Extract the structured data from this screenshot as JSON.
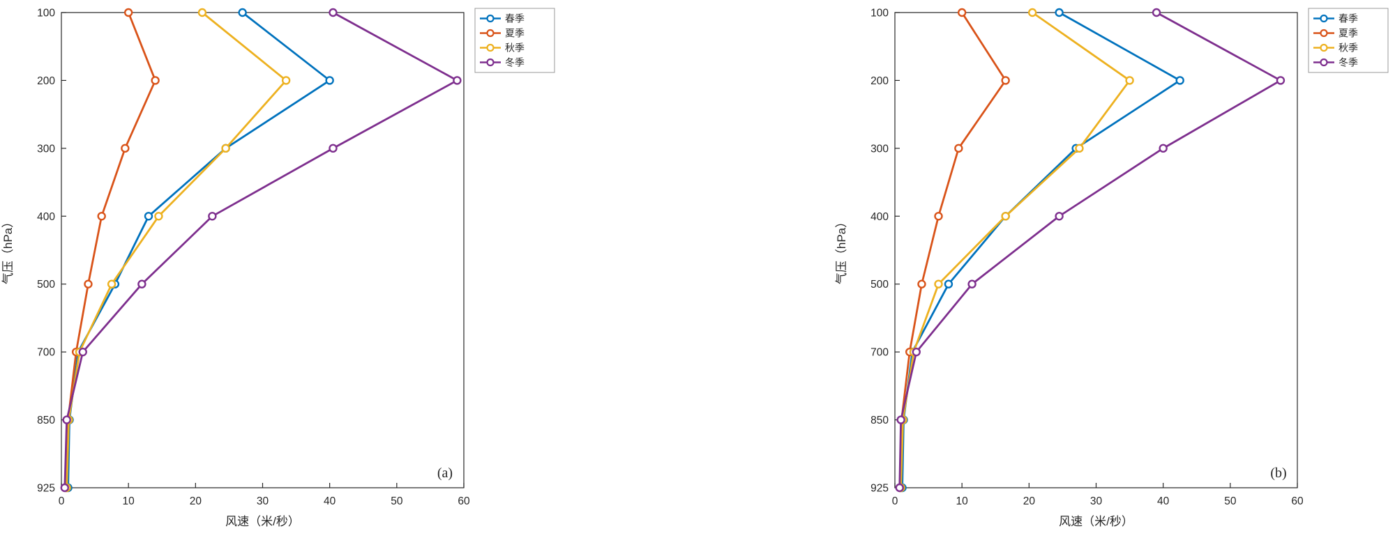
{
  "figure": {
    "background": "#ffffff",
    "axis_color": "#262626",
    "tick_label_color": "#262626",
    "legend_border": "#999999",
    "marker_fill": "#ffffff"
  },
  "chart_data": [
    {
      "type": "line",
      "panel_label": "(a)",
      "xlabel": "风速（米/秒）",
      "ylabel": "气压（hPa）",
      "xlim": [
        0,
        60
      ],
      "xticks": [
        0,
        10,
        20,
        30,
        40,
        50,
        60
      ],
      "yticks": [
        100,
        200,
        300,
        400,
        500,
        700,
        850,
        925
      ],
      "y_axis_style": "pressure levels equally spaced, 100 hPa at top, 925 hPa at bottom",
      "legend_position": "outside-top-right",
      "grid": false,
      "series": [
        {
          "key": "spring",
          "name": "春季",
          "color": "#0072BD",
          "values": [
            27,
            40,
            24.5,
            13,
            8,
            2.5,
            1.2,
            1
          ]
        },
        {
          "key": "summer",
          "name": "夏季",
          "color": "#D95319",
          "values": [
            10,
            14,
            9.5,
            6,
            4,
            2.2,
            1,
            0.7
          ]
        },
        {
          "key": "autumn",
          "name": "秋季",
          "color": "#EDB120",
          "values": [
            21,
            33.5,
            24.5,
            14.5,
            7.5,
            2.7,
            1.1,
            0.8
          ]
        },
        {
          "key": "winter",
          "name": "冬季",
          "color": "#7E2F8E",
          "values": [
            40.5,
            59,
            40.5,
            22.5,
            12,
            3.2,
            0.8,
            0.5
          ]
        }
      ]
    },
    {
      "type": "line",
      "panel_label": "(b)",
      "xlabel": "风速（米/秒）",
      "ylabel": "气压（hPa）",
      "xlim": [
        0,
        60
      ],
      "xticks": [
        0,
        10,
        20,
        30,
        40,
        50,
        60
      ],
      "yticks": [
        100,
        200,
        300,
        400,
        500,
        700,
        850,
        925
      ],
      "y_axis_style": "pressure levels equally spaced, 100 hPa at top, 925 hPa at bottom",
      "legend_position": "outside-top-right",
      "grid": false,
      "series": [
        {
          "key": "spring",
          "name": "春季",
          "color": "#0072BD",
          "values": [
            24.5,
            42.5,
            27,
            16.5,
            8,
            2.6,
            1.3,
            1.1
          ]
        },
        {
          "key": "summer",
          "name": "夏季",
          "color": "#D95319",
          "values": [
            10,
            16.5,
            9.5,
            6.5,
            4,
            2.2,
            1,
            0.8
          ]
        },
        {
          "key": "autumn",
          "name": "秋季",
          "color": "#EDB120",
          "values": [
            20.5,
            35,
            27.5,
            16.5,
            6.5,
            2.8,
            1.2,
            0.9
          ]
        },
        {
          "key": "winter",
          "name": "冬季",
          "color": "#7E2F8E",
          "values": [
            39,
            57.5,
            40,
            24.5,
            11.5,
            3.2,
            0.9,
            0.7
          ]
        }
      ]
    }
  ]
}
